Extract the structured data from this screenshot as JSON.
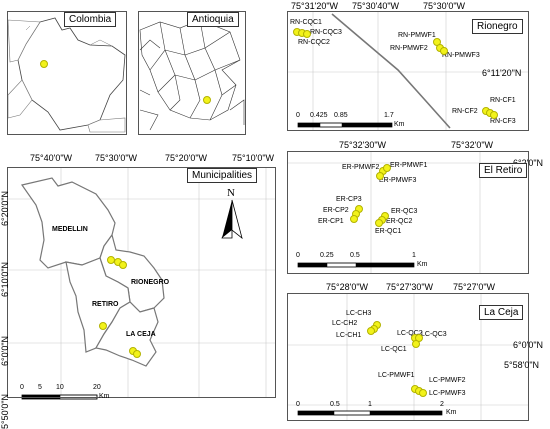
{
  "inset_colombia": {
    "title": "Colombia"
  },
  "inset_antioquia": {
    "title": "Antioquia"
  },
  "municipalities_map": {
    "title": "Municipalities",
    "north": "N",
    "top_ticks": [
      "75°40'0\"W",
      "75°30'0\"W",
      "75°20'0\"W",
      "75°10'0\"W"
    ],
    "left_ticks": [
      "6°20'0\"N",
      "6°10'0\"N",
      "6°0'0\"N",
      "5°50'0\"N"
    ],
    "municipality_labels": [
      "MEDELLIN",
      "RIONEGRO",
      "RETIRO",
      "LA CEJA"
    ],
    "scale_labels": [
      "0",
      "5",
      "10",
      "20"
    ],
    "scale_unit": "Km"
  },
  "rionegro_map": {
    "title": "Rionegro",
    "top_ticks": [
      "75°31'20\"W",
      "75°30'40\"W",
      "75°30'0\"W"
    ],
    "right_ticks": [
      "6°11'20\"N"
    ],
    "site_labels": [
      "RN-CQC1",
      "RN-CQC3",
      "RN-CQC2",
      "RN-PMWF1",
      "RN-PMWF2",
      "RN-PMWF3",
      "RN-CF1",
      "RN-CF2",
      "RN-CF3"
    ],
    "scale_labels": [
      "0",
      "0.425",
      "0.85",
      "1.7"
    ],
    "scale_unit": "Km"
  },
  "retiro_map": {
    "title": "El Retiro",
    "top_ticks": [
      "75°32'30\"W",
      "75°32'0\"W"
    ],
    "right_ticks": [
      "6°2'0\"N"
    ],
    "site_labels": [
      "ER-PMWF2",
      "ER-PMWF1",
      "ER-PMWF3",
      "ER-CP3",
      "ER-CP2",
      "ER-CP1",
      "ER-QC3",
      "ER-QC2",
      "ER-QC1"
    ],
    "scale_labels": [
      "0",
      "0.25",
      "0.5",
      "1"
    ],
    "scale_unit": "Km"
  },
  "laceja_map": {
    "title": "La Ceja",
    "top_ticks": [
      "75°28'0\"W",
      "75°27'30\"W",
      "75°27'0\"W"
    ],
    "right_ticks": [
      "6°0'0\"N",
      "5°58'0\"N"
    ],
    "site_labels": [
      "LC-CH3",
      "LC-CH2",
      "LC-CH1",
      "LC-QC2",
      "LC-QC3",
      "LC-QC1",
      "LC-PMWF1",
      "LC-PMWF2",
      "LC-PMWF3"
    ],
    "scale_labels": [
      "0",
      "0.5",
      "1",
      "2"
    ],
    "scale_unit": "Km"
  },
  "colors": {
    "site_point": "#f2f21a",
    "boundary": "#666666",
    "road": "#777777"
  }
}
